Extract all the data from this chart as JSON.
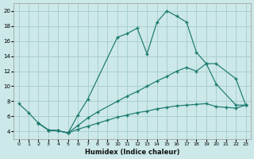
{
  "xlabel": "Humidex (Indice chaleur)",
  "bg_color": "#cce8e8",
  "grid_color": "#aacfcf",
  "line_color": "#1a7a6e",
  "xlim": [
    -0.5,
    23.5
  ],
  "ylim": [
    3.0,
    21.0
  ],
  "xticks": [
    0,
    1,
    2,
    3,
    4,
    5,
    6,
    7,
    8,
    9,
    10,
    11,
    12,
    13,
    14,
    15,
    16,
    17,
    18,
    19,
    20,
    21,
    22,
    23
  ],
  "yticks": [
    4,
    6,
    8,
    10,
    12,
    14,
    16,
    18,
    20
  ],
  "upper_x": [
    0,
    1,
    2,
    3,
    4,
    5,
    6,
    7,
    10,
    11,
    12,
    13,
    14,
    15,
    16,
    17,
    18,
    19,
    20,
    22,
    23
  ],
  "upper_y": [
    7.7,
    6.5,
    5.1,
    4.2,
    4.1,
    3.8,
    6.2,
    8.3,
    16.5,
    17.0,
    17.7,
    14.3,
    18.5,
    20.0,
    19.3,
    18.5,
    14.5,
    13.0,
    10.3,
    7.5,
    7.5
  ],
  "mid_x": [
    2,
    3,
    4,
    5,
    6,
    7,
    8,
    10,
    11,
    12,
    13,
    14,
    15,
    16,
    17,
    18,
    19,
    20,
    22,
    23
  ],
  "mid_y": [
    5.1,
    4.2,
    4.1,
    3.8,
    4.8,
    5.8,
    6.6,
    8.0,
    8.7,
    9.3,
    10.0,
    10.7,
    11.3,
    12.0,
    12.5,
    12.0,
    13.0,
    13.0,
    11.0,
    7.5
  ],
  "low_x": [
    2,
    3,
    4,
    5,
    6,
    7,
    8,
    9,
    10,
    11,
    12,
    13,
    14,
    15,
    16,
    17,
    18,
    19,
    20,
    21,
    22,
    23
  ],
  "low_y": [
    5.1,
    4.2,
    4.1,
    3.8,
    4.3,
    4.7,
    5.1,
    5.5,
    5.9,
    6.2,
    6.5,
    6.7,
    7.0,
    7.2,
    7.4,
    7.5,
    7.6,
    7.7,
    7.3,
    7.2,
    7.1,
    7.5
  ]
}
